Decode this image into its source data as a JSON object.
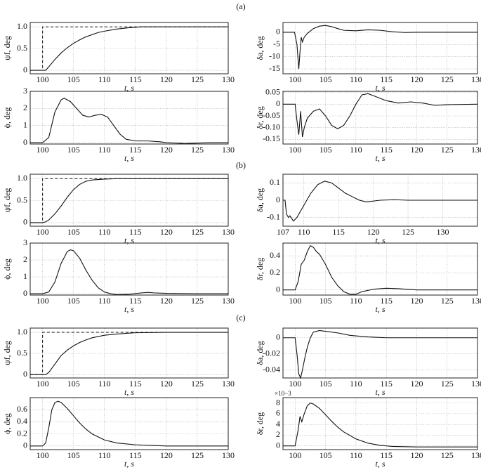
{
  "panel_labels": [
    "(a)",
    "(b)",
    "(c)"
  ],
  "chart_data": [
    {
      "type": "line",
      "ylabel": "ψf, deg",
      "xlabel": "t, s",
      "xlim": [
        98,
        130
      ],
      "ylim": [
        -0.08,
        1.1
      ],
      "xticks": [
        100,
        105,
        110,
        115,
        120,
        125,
        130
      ],
      "yticks": [
        0,
        0.5,
        {
          "value": 1,
          "label": "1.0"
        }
      ],
      "grid": true,
      "series": [
        {
          "color": "#111",
          "x": [
            98,
            100,
            100.5,
            101,
            102,
            103,
            104,
            105,
            106,
            107,
            108,
            109,
            110,
            112,
            114,
            116,
            120,
            130
          ],
          "values": [
            0,
            0,
            0,
            0.08,
            0.25,
            0.4,
            0.52,
            0.62,
            0.7,
            0.77,
            0.82,
            0.87,
            0.9,
            0.95,
            0.98,
            1,
            1,
            1
          ]
        },
        {
          "color": "#111",
          "dash": true,
          "x": [
            98,
            100,
            100,
            130
          ],
          "values": [
            0,
            0,
            1,
            1
          ]
        }
      ]
    },
    {
      "type": "line",
      "ylabel": "δa, deg",
      "xlabel": "t, s",
      "xlim": [
        98,
        130
      ],
      "ylim": [
        -17,
        4
      ],
      "xticks": [
        100,
        105,
        110,
        115,
        120,
        125,
        130
      ],
      "yticks": [
        -15,
        -10,
        -5,
        0
      ],
      "grid": true,
      "series": [
        {
          "color": "#111",
          "x": [
            98,
            99.9,
            100.3,
            100.6,
            100.8,
            101,
            101.2,
            101.5,
            102,
            103,
            104,
            105,
            106,
            107,
            108,
            110,
            112,
            114,
            116,
            118,
            120,
            130
          ],
          "values": [
            0,
            0,
            -5,
            -15,
            -8,
            -2,
            -4,
            -2,
            -0.5,
            1.5,
            2.5,
            2.8,
            2.3,
            1.5,
            0.8,
            0.6,
            1,
            0.8,
            0.2,
            -0.1,
            0,
            0
          ]
        }
      ]
    },
    {
      "type": "line",
      "ylabel": "ϕ, deg",
      "xlabel": "t, s",
      "xlim": [
        98,
        130
      ],
      "ylim": [
        -0.08,
        3
      ],
      "xticks": [
        100,
        105,
        110,
        115,
        120,
        125,
        130
      ],
      "yticks": [
        0,
        1,
        2,
        3
      ],
      "grid": true,
      "series": [
        {
          "color": "#111",
          "x": [
            98,
            100,
            101,
            102,
            103,
            103.5,
            104.5,
            105.5,
            106.5,
            107.5,
            108.5,
            109.5,
            110.5,
            111.5,
            112.5,
            113.5,
            115,
            117,
            119,
            120,
            123,
            127,
            130
          ],
          "values": [
            0,
            0,
            0.3,
            1.8,
            2.5,
            2.6,
            2.4,
            2,
            1.6,
            1.5,
            1.6,
            1.65,
            1.5,
            1,
            0.5,
            0.2,
            0.1,
            0.1,
            0.05,
            0,
            -0.05,
            0,
            0
          ]
        }
      ]
    },
    {
      "type": "line",
      "ylabel": "δr, deg",
      "xlabel": "t, s",
      "xlim": [
        98,
        130
      ],
      "ylim": [
        -0.17,
        0.055
      ],
      "xticks": [
        100,
        105,
        110,
        115,
        120,
        125,
        130
      ],
      "yticks": [
        -0.15,
        {
          "value": -0.1,
          "label": "-0.10"
        },
        -0.05,
        0,
        0.05
      ],
      "grid": true,
      "series": [
        {
          "color": "#111",
          "x": [
            98,
            100,
            100.3,
            100.6,
            100.9,
            101.2,
            101.5,
            102,
            103,
            104,
            105,
            106,
            107,
            108,
            109,
            110,
            111,
            112,
            113,
            115,
            117,
            119,
            121,
            123,
            125,
            130
          ],
          "values": [
            0,
            0,
            -0.07,
            -0.13,
            -0.03,
            -0.14,
            -0.1,
            -0.06,
            -0.03,
            -0.02,
            -0.05,
            -0.09,
            -0.105,
            -0.09,
            -0.05,
            0,
            0.04,
            0.045,
            0.035,
            0.015,
            0.005,
            0.01,
            0.005,
            -0.005,
            -0.002,
            0
          ]
        }
      ]
    },
    {
      "type": "line",
      "ylabel": "ψf, deg",
      "xlabel": "t, s",
      "xlim": [
        98,
        130
      ],
      "ylim": [
        -0.08,
        1.1
      ],
      "xticks": [
        100,
        105,
        110,
        115,
        120,
        125,
        130
      ],
      "yticks": [
        0,
        0.5,
        {
          "value": 1,
          "label": "1.0"
        }
      ],
      "grid": true,
      "series": [
        {
          "color": "#111",
          "x": [
            98,
            100,
            100.5,
            101,
            102,
            103,
            104,
            105,
            106,
            107,
            108,
            110,
            112,
            130
          ],
          "values": [
            0,
            0,
            0.02,
            0.06,
            0.2,
            0.38,
            0.58,
            0.75,
            0.87,
            0.94,
            0.97,
            0.99,
            1,
            1
          ]
        },
        {
          "color": "#111",
          "dash": true,
          "x": [
            98,
            100,
            100,
            130
          ],
          "values": [
            0,
            0,
            1,
            1
          ]
        }
      ]
    },
    {
      "type": "line",
      "ylabel": "δa, deg",
      "xlabel": "t, s",
      "xlim": [
        107,
        135
      ],
      "ylim": [
        -0.15,
        0.15
      ],
      "xticks": [
        107,
        110,
        115,
        120,
        125,
        130
      ],
      "yticks": [
        -0.1,
        0,
        0.1
      ],
      "grid": true,
      "series": [
        {
          "color": "#111",
          "x": [
            107,
            107.3,
            107.5,
            107.8,
            108,
            108.5,
            109,
            110,
            111,
            112,
            113,
            114,
            115,
            116,
            117,
            118,
            119,
            121,
            123,
            125,
            130,
            135
          ],
          "values": [
            0,
            0,
            -0.08,
            -0.1,
            -0.09,
            -0.12,
            -0.1,
            -0.03,
            0.04,
            0.09,
            0.11,
            0.1,
            0.07,
            0.04,
            0.02,
            0,
            -0.01,
            0,
            0.003,
            0,
            0,
            0
          ]
        }
      ]
    },
    {
      "type": "line",
      "ylabel": "ϕ, deg",
      "xlabel": "t, s",
      "xlim": [
        98,
        130
      ],
      "ylim": [
        -0.08,
        3
      ],
      "xticks": [
        100,
        105,
        110,
        115,
        120,
        125,
        130
      ],
      "yticks": [
        0,
        1,
        2,
        3
      ],
      "grid": true,
      "series": [
        {
          "color": "#111",
          "x": [
            98,
            100,
            101,
            102,
            103,
            104,
            104.5,
            105,
            106,
            107,
            108,
            109,
            110,
            111,
            112,
            114,
            116,
            117,
            118,
            120,
            125,
            130
          ],
          "values": [
            0,
            0,
            0.1,
            0.7,
            1.8,
            2.5,
            2.6,
            2.55,
            2.1,
            1.4,
            0.8,
            0.35,
            0.1,
            0,
            -0.05,
            -0.03,
            0.05,
            0.08,
            0.05,
            0.02,
            0,
            0
          ]
        }
      ]
    },
    {
      "type": "line",
      "ylabel": "δr, deg",
      "xlabel": "t, s",
      "xlim": [
        98,
        130
      ],
      "ylim": [
        -0.06,
        0.55
      ],
      "xticks": [
        100,
        105,
        110,
        115,
        120,
        125,
        130
      ],
      "yticks": [
        0,
        0.2,
        0.4
      ],
      "grid": true,
      "series": [
        {
          "color": "#111",
          "x": [
            98,
            100,
            100.5,
            101,
            101.5,
            102,
            102.5,
            103,
            103.5,
            104,
            105,
            106,
            107,
            108,
            109,
            110,
            111,
            113,
            115,
            117,
            120,
            130
          ],
          "values": [
            0,
            0,
            0.1,
            0.3,
            0.35,
            0.45,
            0.52,
            0.5,
            0.45,
            0.42,
            0.3,
            0.15,
            0.05,
            -0.02,
            -0.05,
            -0.05,
            -0.02,
            0.01,
            0.02,
            0.015,
            0,
            0
          ]
        }
      ]
    },
    {
      "type": "line",
      "ylabel": "ψf, deg",
      "xlabel": "t, s",
      "xlim": [
        98,
        130
      ],
      "ylim": [
        -0.08,
        1.1
      ],
      "xticks": [
        100,
        105,
        110,
        115,
        120,
        125,
        130
      ],
      "yticks": [
        0,
        0.5,
        {
          "value": 1,
          "label": "1.0"
        }
      ],
      "grid": true,
      "series": [
        {
          "color": "#111",
          "x": [
            98,
            100,
            100.5,
            101,
            102,
            103,
            104,
            105,
            106,
            107,
            108,
            110,
            112,
            115,
            120,
            130
          ],
          "values": [
            0,
            0,
            0,
            0.05,
            0.25,
            0.45,
            0.58,
            0.68,
            0.76,
            0.82,
            0.87,
            0.93,
            0.96,
            0.99,
            1,
            1
          ]
        },
        {
          "color": "#111",
          "dash": true,
          "x": [
            98,
            100,
            100,
            130
          ],
          "values": [
            0,
            0,
            1,
            1
          ]
        }
      ]
    },
    {
      "type": "line",
      "ylabel": "δa, deg",
      "xlabel": "t, s",
      "xlim": [
        98,
        130
      ],
      "ylim": [
        -0.05,
        0.012
      ],
      "xticks": [
        100,
        105,
        110,
        115,
        120,
        125,
        130
      ],
      "yticks": [
        -0.04,
        -0.02,
        0
      ],
      "grid": true,
      "series": [
        {
          "color": "#111",
          "x": [
            98,
            100,
            100.3,
            100.6,
            100.9,
            101.2,
            101.6,
            102,
            102.5,
            103,
            104,
            105,
            107,
            109,
            112,
            115,
            130
          ],
          "values": [
            0,
            0,
            -0.02,
            -0.045,
            -0.05,
            -0.04,
            -0.025,
            -0.012,
            0,
            0.007,
            0.009,
            0.008,
            0.006,
            0.003,
            0.001,
            0,
            0
          ]
        }
      ]
    },
    {
      "type": "line",
      "ylabel": "ϕ, deg",
      "xlabel": "t, s",
      "xlim": [
        98,
        130
      ],
      "ylim": [
        -0.06,
        0.8
      ],
      "xticks": [
        100,
        105,
        110,
        115,
        120,
        125,
        130
      ],
      "yticks": [
        0,
        0.2,
        0.4,
        0.6
      ],
      "grid": true,
      "series": [
        {
          "color": "#111",
          "x": [
            98,
            100,
            100.5,
            101,
            101.5,
            102,
            102.5,
            103,
            104,
            105,
            106,
            107,
            108,
            110,
            112,
            115,
            120,
            130
          ],
          "values": [
            0,
            0,
            0.05,
            0.3,
            0.6,
            0.72,
            0.74,
            0.72,
            0.62,
            0.5,
            0.38,
            0.28,
            0.2,
            0.1,
            0.05,
            0.02,
            0,
            0
          ]
        }
      ]
    },
    {
      "type": "line",
      "ylabel": "δr, deg",
      "xlabel": "t, s",
      "annotation": "×10−3",
      "xlim": [
        98,
        130
      ],
      "ylim": [
        -0.7,
        9
      ],
      "xticks": [
        100,
        105,
        110,
        115,
        120,
        125,
        130
      ],
      "yticks": [
        0,
        2,
        4,
        6,
        8
      ],
      "grid": true,
      "series": [
        {
          "color": "#111",
          "x": [
            98,
            100,
            100.5,
            100.8,
            101.1,
            101.5,
            102,
            102.5,
            103,
            104,
            105,
            106,
            107,
            108,
            110,
            112,
            114,
            116,
            120,
            125,
            130
          ],
          "values": [
            0,
            0,
            3,
            5.5,
            4.5,
            6,
            7.5,
            8,
            7.8,
            7,
            5.8,
            4.6,
            3.5,
            2.6,
            1.3,
            0.5,
            0.1,
            -0.1,
            -0.2,
            -0.2,
            -0.2
          ]
        }
      ]
    }
  ]
}
